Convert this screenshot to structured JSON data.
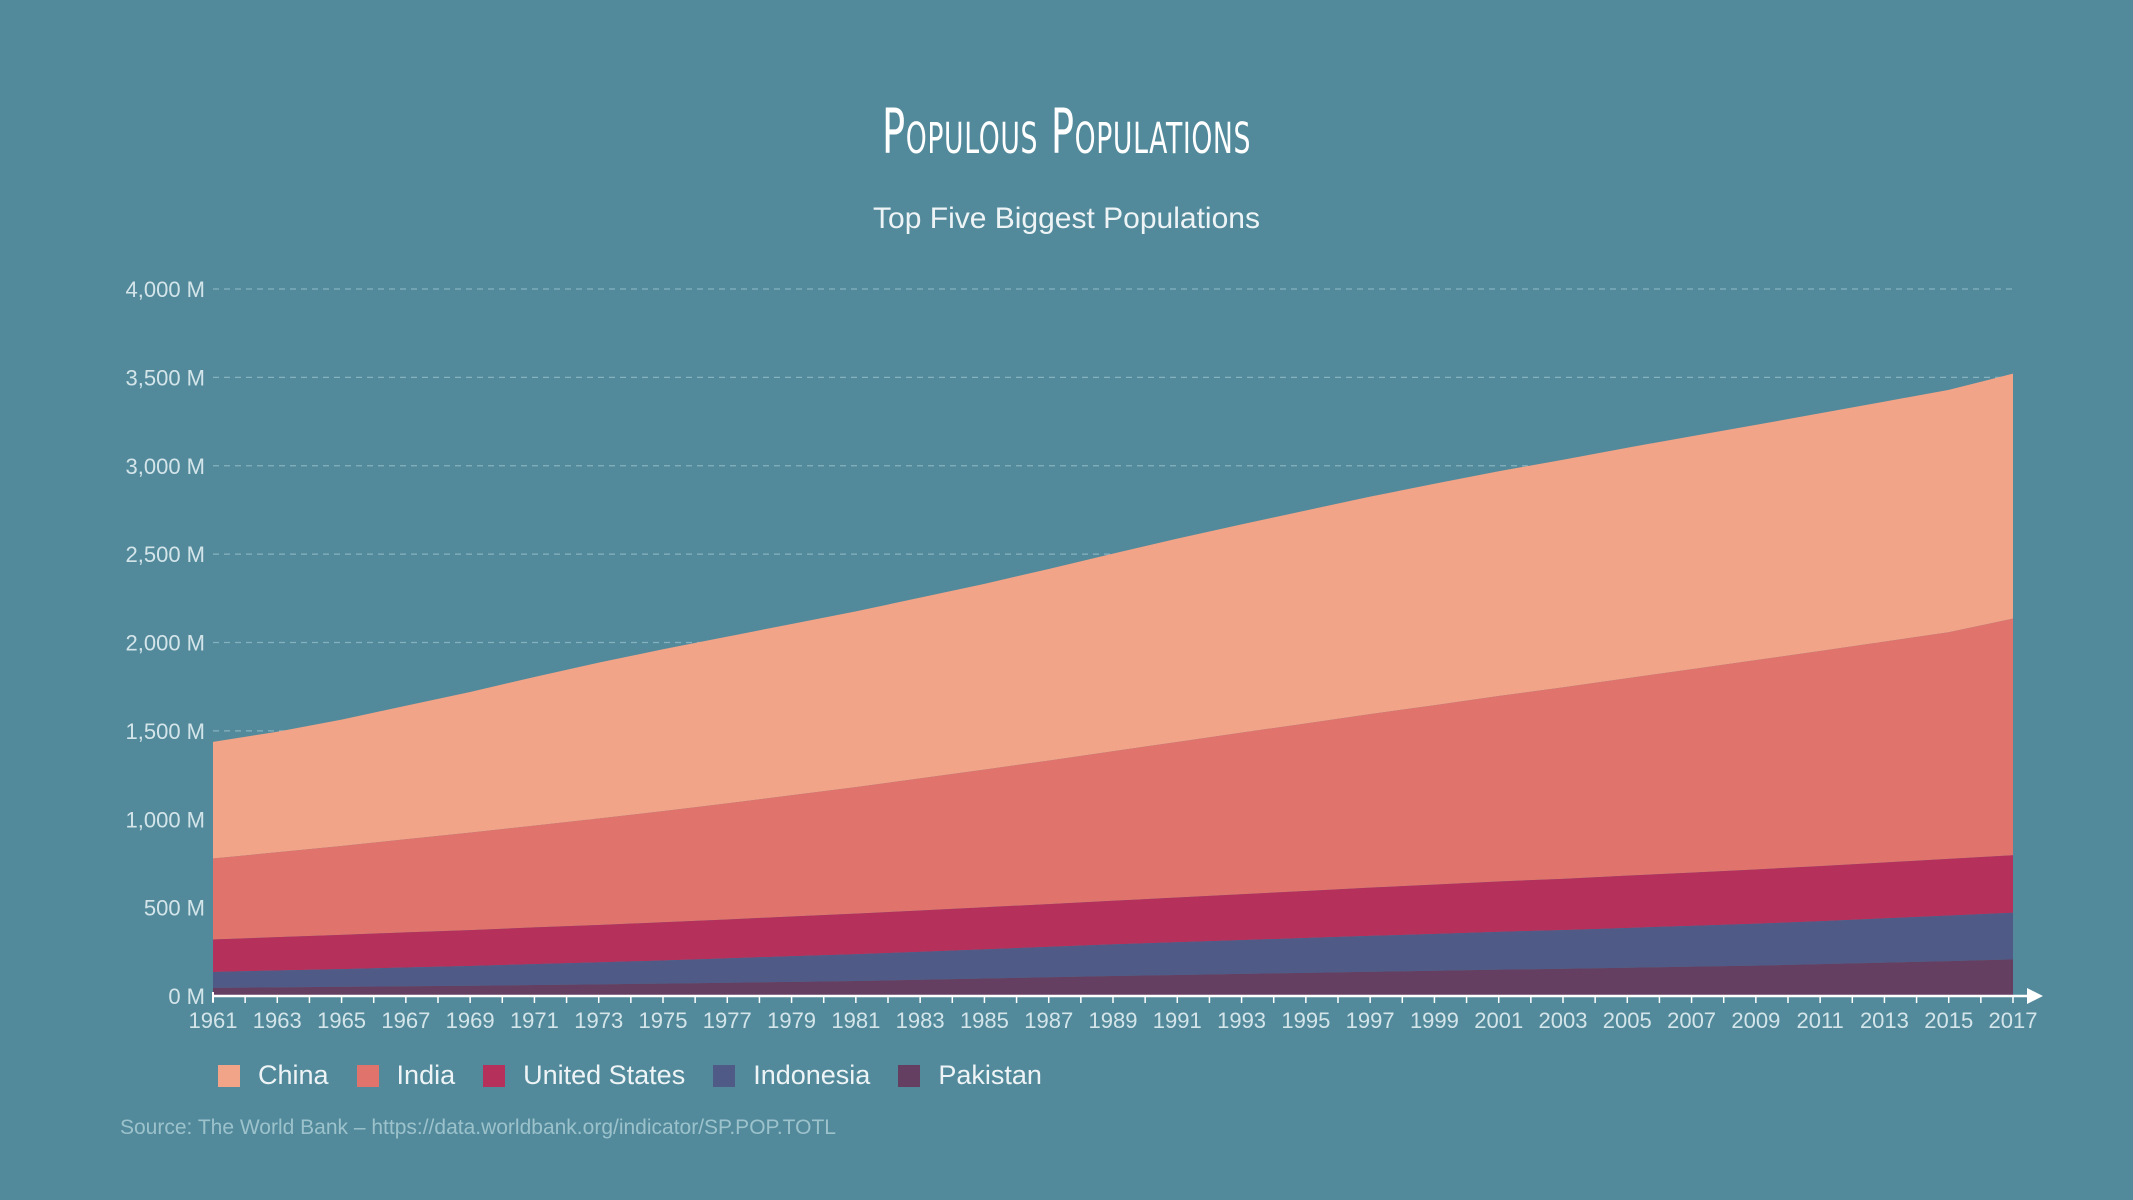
{
  "header": {
    "title": "Populous Populations",
    "subtitle": "Top Five Biggest Populations"
  },
  "source": "Source: The World Bank – https://data.worldbank.org/indicator/SP.POP.TOTL",
  "colors": {
    "background": "#528a9b",
    "China": "#f2a488",
    "India": "#e0746d",
    "United States": "#b5305b",
    "Indonesia": "#4f5a87",
    "Pakistan": "#653f62",
    "gridline": "#86b2bf",
    "axis": "#ffffff",
    "tick_text": "#d4e5ea"
  },
  "legend": [
    {
      "label": "China"
    },
    {
      "label": "India"
    },
    {
      "label": "United States"
    },
    {
      "label": "Indonesia"
    },
    {
      "label": "Pakistan"
    }
  ],
  "chart_data": {
    "type": "area",
    "stacked": true,
    "title": "Populous Populations",
    "subtitle": "Top Five Biggest Populations",
    "xlabel": "",
    "ylabel": "",
    "ylim": [
      0,
      4000
    ],
    "y_ticks": [
      "0 M",
      "500 M",
      "1,000 M",
      "1,500 M",
      "2,000 M",
      "2,500 M",
      "3,000 M",
      "3,500 M",
      "4,000 M"
    ],
    "grid": true,
    "legend_position": "bottom-left",
    "x": [
      1961,
      1963,
      1965,
      1967,
      1969,
      1971,
      1973,
      1975,
      1977,
      1979,
      1981,
      1983,
      1985,
      1987,
      1989,
      1991,
      1993,
      1995,
      1997,
      1999,
      2001,
      2003,
      2005,
      2007,
      2009,
      2011,
      2013,
      2015,
      2017
    ],
    "x_tick_labels": [
      "1961",
      "1963",
      "1965",
      "1967",
      "1969",
      "1971",
      "1973",
      "1975",
      "1977",
      "1979",
      "1981",
      "1983",
      "1985",
      "1987",
      "1989",
      "1991",
      "1993",
      "1995",
      "1997",
      "1999",
      "2001",
      "2003",
      "2005",
      "2007",
      "2009",
      "2011",
      "2013",
      "2015",
      "2017"
    ],
    "series": [
      {
        "name": "Pakistan",
        "values": [
          46,
          49,
          52,
          55,
          58,
          62,
          66,
          70,
          75,
          80,
          85,
          92,
          99,
          106,
          113,
          119,
          125,
          131,
          137,
          143,
          149,
          154,
          160,
          166,
          172,
          180,
          189,
          197,
          207
        ]
      },
      {
        "name": "Indonesia",
        "values": [
          90,
          95,
          100,
          106,
          112,
          118,
          124,
          131,
          138,
          145,
          151,
          158,
          165,
          172,
          179,
          185,
          191,
          197,
          203,
          208,
          214,
          219,
          225,
          231,
          237,
          243,
          250,
          258,
          264
        ]
      },
      {
        "name": "United States",
        "values": [
          184,
          189,
          194,
          199,
          203,
          208,
          212,
          216,
          220,
          225,
          230,
          234,
          238,
          242,
          247,
          253,
          260,
          266,
          273,
          279,
          285,
          290,
          296,
          301,
          307,
          312,
          316,
          321,
          325
        ]
      },
      {
        "name": "India",
        "values": [
          458,
          480,
          503,
          527,
          551,
          576,
          602,
          629,
          657,
          686,
          716,
          747,
          779,
          812,
          846,
          880,
          914,
          948,
          982,
          1015,
          1049,
          1083,
          1117,
          1151,
          1184,
          1217,
          1250,
          1282,
          1339
        ]
      },
      {
        "name": "China",
        "values": [
          660,
          682,
          715,
          755,
          796,
          841,
          882,
          916,
          943,
          969,
          994,
          1023,
          1051,
          1084,
          1118,
          1151,
          1178,
          1205,
          1230,
          1253,
          1272,
          1288,
          1304,
          1318,
          1331,
          1345,
          1358,
          1371,
          1386
        ]
      }
    ]
  }
}
